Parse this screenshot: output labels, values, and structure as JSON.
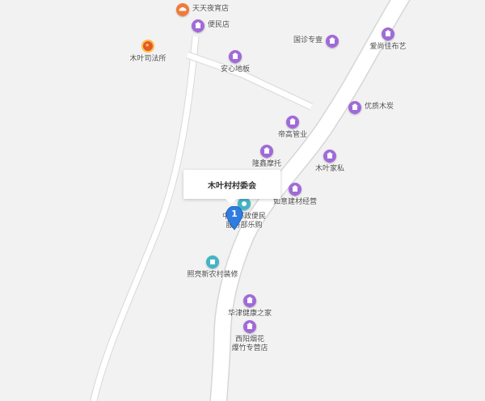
{
  "map": {
    "colors": {
      "road": "#ffffff",
      "road_edge": "#d2d2d2",
      "background": "#f2f2f2",
      "poi": "#a06ad8",
      "marker": "#2f7de1"
    },
    "callout": {
      "title": "木叶村村委会"
    },
    "marker": {
      "number": "1"
    },
    "pois": {
      "tianyetian": {
        "label": "天天夜宵店",
        "icon": "food-icon"
      },
      "bianmin": {
        "label": "便民店",
        "icon": "shop-icon"
      },
      "sifasuo": {
        "label": "木叶司法所",
        "icon": "court-emblem-icon"
      },
      "anxin": {
        "label": "安心地板",
        "icon": "shop-icon"
      },
      "guoshi": {
        "label": "国诊专壹",
        "icon": "shop-icon"
      },
      "aishang": {
        "label": "爱尚佳布艺",
        "icon": "shop-icon"
      },
      "youzhi": {
        "label": "优质木炭",
        "icon": "shop-icon"
      },
      "dihao": {
        "label": "帝高管业",
        "icon": "shop-icon"
      },
      "longxin": {
        "label": "隆鑫摩托",
        "icon": "shop-icon"
      },
      "jiasi": {
        "label": "木叶家私",
        "icon": "shop-icon"
      },
      "ruyi": {
        "label": "如意建材经营",
        "icon": "shop-icon"
      },
      "youzheng_line1": "中国邮政便民",
      "youzheng_line2": "服务部乐购",
      "youzheng": {
        "icon": "service-icon"
      },
      "zhaoliang": {
        "label": "照亮新农村装修",
        "icon": "service-icon"
      },
      "huajin": {
        "label": "华津健康之家",
        "icon": "shop-icon"
      },
      "xiyang_line1": "西阳烟花",
      "xiyang_line2": "爆竹专营店",
      "xiyang": {
        "icon": "shop-icon"
      }
    }
  }
}
